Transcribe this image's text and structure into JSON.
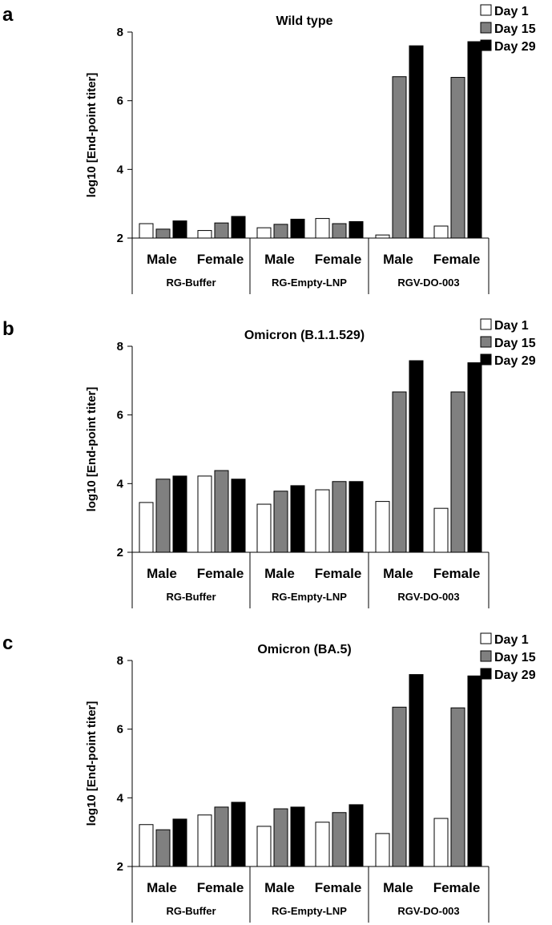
{
  "colors": {
    "day1": "#ffffff",
    "day15": "#808080",
    "day29": "#000000"
  },
  "chart_data": [
    {
      "type": "bar",
      "panel": "a",
      "title": "Wild type",
      "ylabel": "log10 [End-point titer]",
      "ylim": [
        2,
        8
      ],
      "yticks": [
        "2",
        "4",
        "6",
        "8"
      ],
      "groups": [
        {
          "label": "RG-Buffer",
          "subgroups": [
            "Male",
            "Female"
          ]
        },
        {
          "label": "RG-Empty-LNP",
          "subgroups": [
            "Male",
            "Female"
          ]
        },
        {
          "label": "RGV-DO-003",
          "subgroups": [
            "Male",
            "Female"
          ]
        }
      ],
      "legend": [
        "Day 1",
        "Day 15",
        "Day 29"
      ],
      "series": [
        {
          "name": "Day 1",
          "values": [
            2.42,
            2.22,
            2.3,
            2.57,
            2.09,
            2.35
          ]
        },
        {
          "name": "Day 15",
          "values": [
            2.26,
            2.44,
            2.4,
            2.42,
            6.7,
            6.68
          ]
        },
        {
          "name": "Day 29",
          "values": [
            2.5,
            2.63,
            2.55,
            2.48,
            7.6,
            7.72
          ]
        }
      ]
    },
    {
      "type": "bar",
      "panel": "b",
      "title": "Omicron (B.1.1.529)",
      "ylabel": "log10 [End-point titer]",
      "ylim": [
        2,
        8
      ],
      "yticks": [
        "2",
        "4",
        "6",
        "8"
      ],
      "groups": [
        {
          "label": "RG-Buffer",
          "subgroups": [
            "Male",
            "Female"
          ]
        },
        {
          "label": "RG-Empty-LNP",
          "subgroups": [
            "Male",
            "Female"
          ]
        },
        {
          "label": "RGV-DO-003",
          "subgroups": [
            "Male",
            "Female"
          ]
        }
      ],
      "legend": [
        "Day 1",
        "Day 15",
        "Day 29"
      ],
      "series": [
        {
          "name": "Day 1",
          "values": [
            3.45,
            4.22,
            3.4,
            3.82,
            3.48,
            3.28
          ]
        },
        {
          "name": "Day 15",
          "values": [
            4.13,
            4.38,
            3.78,
            4.06,
            6.67,
            6.67
          ]
        },
        {
          "name": "Day 29",
          "values": [
            4.22,
            4.13,
            3.94,
            4.06,
            7.58,
            7.52
          ]
        }
      ]
    },
    {
      "type": "bar",
      "panel": "c",
      "title": "Omicron (BA.5)",
      "ylabel": "log10 [End-point titer]",
      "ylim": [
        2,
        8
      ],
      "yticks": [
        "2",
        "4",
        "6",
        "8"
      ],
      "groups": [
        {
          "label": "RG-Buffer",
          "subgroups": [
            "Male",
            "Female"
          ]
        },
        {
          "label": "RG-Empty-LNP",
          "subgroups": [
            "Male",
            "Female"
          ]
        },
        {
          "label": "RGV-DO-003",
          "subgroups": [
            "Male",
            "Female"
          ]
        }
      ],
      "legend": [
        "Day 1",
        "Day 15",
        "Day 29"
      ],
      "series": [
        {
          "name": "Day 1",
          "values": [
            3.22,
            3.5,
            3.17,
            3.29,
            2.96,
            3.4
          ]
        },
        {
          "name": "Day 15",
          "values": [
            3.07,
            3.73,
            3.68,
            3.57,
            6.64,
            6.62
          ]
        },
        {
          "name": "Day 29",
          "values": [
            3.38,
            3.87,
            3.73,
            3.8,
            7.59,
            7.55
          ]
        }
      ]
    }
  ]
}
